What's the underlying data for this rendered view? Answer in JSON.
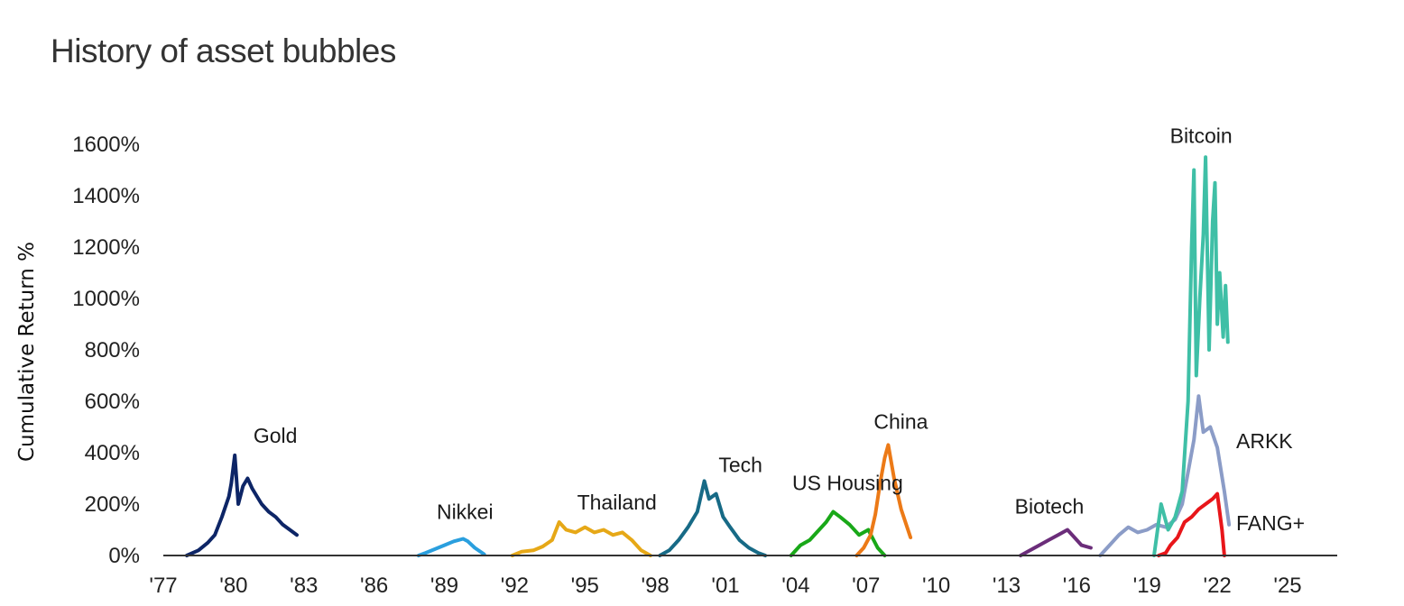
{
  "chart_data": {
    "type": "line",
    "title": "History of asset bubbles",
    "xlabel": "",
    "ylabel": "Cumulative Return %",
    "xlim": [
      1977,
      2026
    ],
    "ylim": [
      0,
      1600
    ],
    "x_ticks": [
      1977,
      1980,
      1983,
      1986,
      1989,
      1992,
      1995,
      1998,
      2001,
      2004,
      2007,
      2010,
      2013,
      2016,
      2019,
      2022,
      2025
    ],
    "x_tick_labels": [
      "'77",
      "'80",
      "'83",
      "'86",
      "'89",
      "'92",
      "'95",
      "'98",
      "'01",
      "'04",
      "'07",
      "'10",
      "'13",
      "'16",
      "'19",
      "'22",
      "'25"
    ],
    "y_ticks": [
      0,
      200,
      400,
      600,
      800,
      1000,
      1200,
      1400,
      1600
    ],
    "y_tick_labels": [
      "0%",
      "200%",
      "400%",
      "600%",
      "800%",
      "1000%",
      "1200%",
      "1400%",
      "1600%"
    ],
    "grid": false,
    "series": [
      {
        "name": "Gold",
        "color": "#0d2566",
        "x": [
          1978.0,
          1978.5,
          1978.9,
          1979.2,
          1979.5,
          1979.8,
          1979.9,
          1980.05,
          1980.2,
          1980.4,
          1980.6,
          1980.8,
          1981.0,
          1981.2,
          1981.5,
          1981.8,
          1982.1,
          1982.4,
          1982.7
        ],
        "y": [
          0,
          20,
          50,
          80,
          150,
          230,
          280,
          390,
          200,
          270,
          300,
          260,
          230,
          200,
          170,
          150,
          120,
          100,
          80
        ]
      },
      {
        "name": "Nikkei",
        "color": "#2a9fde",
        "x": [
          1987.9,
          1988.2,
          1988.6,
          1989.0,
          1989.4,
          1989.8,
          1990.0,
          1990.3,
          1990.7
        ],
        "y": [
          0,
          10,
          25,
          40,
          55,
          65,
          55,
          30,
          5
        ]
      },
      {
        "name": "Thailand",
        "color": "#e6a817",
        "x": [
          1991.9,
          1992.3,
          1992.8,
          1993.2,
          1993.6,
          1993.9,
          1994.2,
          1994.6,
          1995.0,
          1995.4,
          1995.8,
          1996.2,
          1996.6,
          1997.0,
          1997.4,
          1997.8
        ],
        "y": [
          0,
          15,
          20,
          35,
          60,
          130,
          100,
          90,
          110,
          90,
          100,
          80,
          90,
          60,
          20,
          0
        ]
      },
      {
        "name": "Tech",
        "color": "#176a86",
        "x": [
          1998.2,
          1998.6,
          1999.0,
          1999.4,
          1999.8,
          2000.1,
          2000.3,
          2000.6,
          2000.9,
          2001.2,
          2001.6,
          2002.0,
          2002.4,
          2002.7
        ],
        "y": [
          0,
          20,
          60,
          110,
          170,
          290,
          220,
          240,
          150,
          110,
          60,
          30,
          10,
          0
        ]
      },
      {
        "name": "US Housing",
        "color": "#19a818",
        "x": [
          2003.8,
          2004.2,
          2004.6,
          2005.0,
          2005.3,
          2005.6,
          2005.9,
          2006.3,
          2006.7,
          2007.1,
          2007.5,
          2007.8
        ],
        "y": [
          0,
          40,
          60,
          100,
          130,
          170,
          150,
          120,
          80,
          100,
          30,
          0
        ]
      },
      {
        "name": "China",
        "color": "#ec7a17",
        "x": [
          2006.6,
          2006.9,
          2007.2,
          2007.4,
          2007.6,
          2007.8,
          2007.95,
          2008.2,
          2008.5,
          2008.9
        ],
        "y": [
          0,
          30,
          80,
          160,
          280,
          380,
          430,
          300,
          180,
          70
        ]
      },
      {
        "name": "Biotech",
        "color": "#6b2d7a",
        "x": [
          2013.6,
          2014.0,
          2014.4,
          2014.8,
          2015.2,
          2015.6,
          2015.9,
          2016.2,
          2016.6
        ],
        "y": [
          0,
          20,
          40,
          60,
          80,
          100,
          70,
          40,
          30
        ]
      },
      {
        "name": "ARKK",
        "color": "#8b9cc7",
        "x": [
          2017.0,
          2017.4,
          2017.8,
          2018.2,
          2018.6,
          2019.0,
          2019.4,
          2019.8,
          2020.2,
          2020.5,
          2020.8,
          2021.0,
          2021.2,
          2021.4,
          2021.7,
          2022.0,
          2022.3,
          2022.5
        ],
        "y": [
          0,
          40,
          80,
          110,
          90,
          100,
          120,
          110,
          140,
          200,
          350,
          450,
          620,
          480,
          500,
          420,
          250,
          120
        ]
      },
      {
        "name": "FANG+",
        "color": "#e8161a",
        "x": [
          2019.5,
          2019.8,
          2020.0,
          2020.3,
          2020.6,
          2020.9,
          2021.2,
          2021.5,
          2021.8,
          2022.0,
          2022.2,
          2022.3
        ],
        "y": [
          0,
          10,
          40,
          70,
          130,
          150,
          180,
          200,
          220,
          240,
          100,
          0
        ]
      },
      {
        "name": "Bitcoin",
        "color": "#3fbfa6",
        "x": [
          2019.3,
          2019.6,
          2019.9,
          2020.2,
          2020.5,
          2020.75,
          2020.9,
          2021.0,
          2021.1,
          2021.25,
          2021.4,
          2021.5,
          2021.65,
          2021.8,
          2021.9,
          2022.0,
          2022.1,
          2022.25,
          2022.35,
          2022.45
        ],
        "y": [
          0,
          200,
          100,
          150,
          250,
          600,
          1200,
          1500,
          700,
          1000,
          1250,
          1550,
          800,
          1300,
          1450,
          900,
          1100,
          850,
          1050,
          830
        ]
      }
    ],
    "annotations": [
      {
        "text": "Gold",
        "series": "Gold"
      },
      {
        "text": "Nikkei",
        "series": "Nikkei"
      },
      {
        "text": "Thailand",
        "series": "Thailand"
      },
      {
        "text": "Tech",
        "series": "Tech"
      },
      {
        "text": "US Housing",
        "series": "US Housing"
      },
      {
        "text": "China",
        "series": "China"
      },
      {
        "text": "Biotech",
        "series": "Biotech"
      },
      {
        "text": "Bitcoin",
        "series": "Bitcoin"
      },
      {
        "text": "ARKK",
        "series": "ARKK"
      },
      {
        "text": "FANG+",
        "series": "FANG+"
      }
    ]
  }
}
